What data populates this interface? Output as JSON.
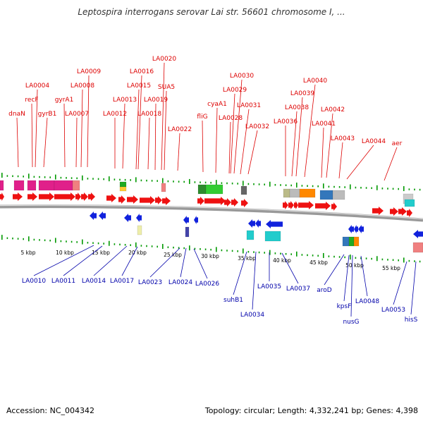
{
  "title": "Leptospira interrogans serovar Lai str. 56601 chromosome I, ...",
  "footer": {
    "accession": "Accession: NC_004342",
    "summary": "Topology: circular; Length: 4,332,241 bp; Genes: 4,398"
  },
  "colors": {
    "forward_label": "#dd0000",
    "reverse_label": "#0000aa",
    "forward_arrow": "#ee1111",
    "reverse_arrow": "#1122dd",
    "tick": "#009900",
    "backbone": "#888888"
  },
  "scale_labels": [
    "5 kbp",
    "10 kbp",
    "15 kbp",
    "20 kbp",
    "25 kbp",
    "30 kbp",
    "35 kbp",
    "40 kbp",
    "45 kbp",
    "50 kbp",
    "55 kbp"
  ],
  "forward_genes": [
    "dnaN",
    "recF",
    "gyrB1",
    "LA0004",
    "gyrA1",
    "LA0007",
    "LA0008",
    "LA0009",
    "LA0012",
    "LA0013",
    "LA0015",
    "LA0016",
    "LA0018",
    "LA0019",
    "LA0020",
    "SUA5",
    "LA0022",
    "fliG",
    "cyaA1",
    "LA0028",
    "LA0029",
    "LA0030",
    "LA0031",
    "LA0032",
    "LA0036",
    "LA0038",
    "LA0039",
    "LA0040",
    "LA0041",
    "LA0042",
    "LA0043",
    "LA0044",
    "aer"
  ],
  "reverse_genes": [
    "LA0010",
    "LA0011",
    "LA0014",
    "LA0017",
    "LA0023",
    "LA0024",
    "LA0026",
    "suhB1",
    "LA0034",
    "LA0035",
    "LA0037",
    "aroD",
    "kpsF",
    "nusG",
    "LA0048",
    "LA0053",
    "hisS"
  ]
}
